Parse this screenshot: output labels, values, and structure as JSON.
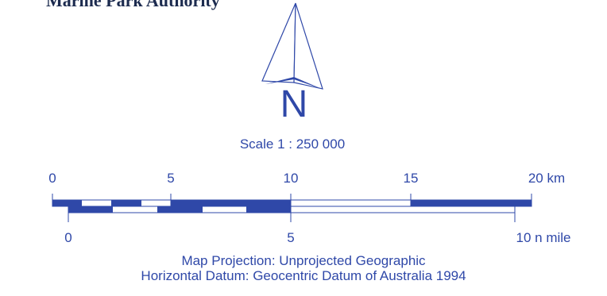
{
  "header": {
    "title": "Marine Park Authority"
  },
  "north_arrow": {
    "label": "N",
    "icon": "north-arrow-icon"
  },
  "scale": {
    "text": "Scale 1 : 250 000",
    "km": {
      "ticks": [
        "0",
        "5",
        "10",
        "15"
      ],
      "end_label": "20 km"
    },
    "nmile": {
      "ticks": [
        "0",
        "5"
      ],
      "end_label": "10 n mile"
    }
  },
  "projection": {
    "projection_text": "Map Projection:  Unprojected Geographic",
    "datum_text": "Horizontal Datum:  Geocentric Datum of Australia 1994"
  },
  "colors": {
    "primary": "#2f48a8",
    "header": "#1c2b4f",
    "background": "#ffffff"
  }
}
